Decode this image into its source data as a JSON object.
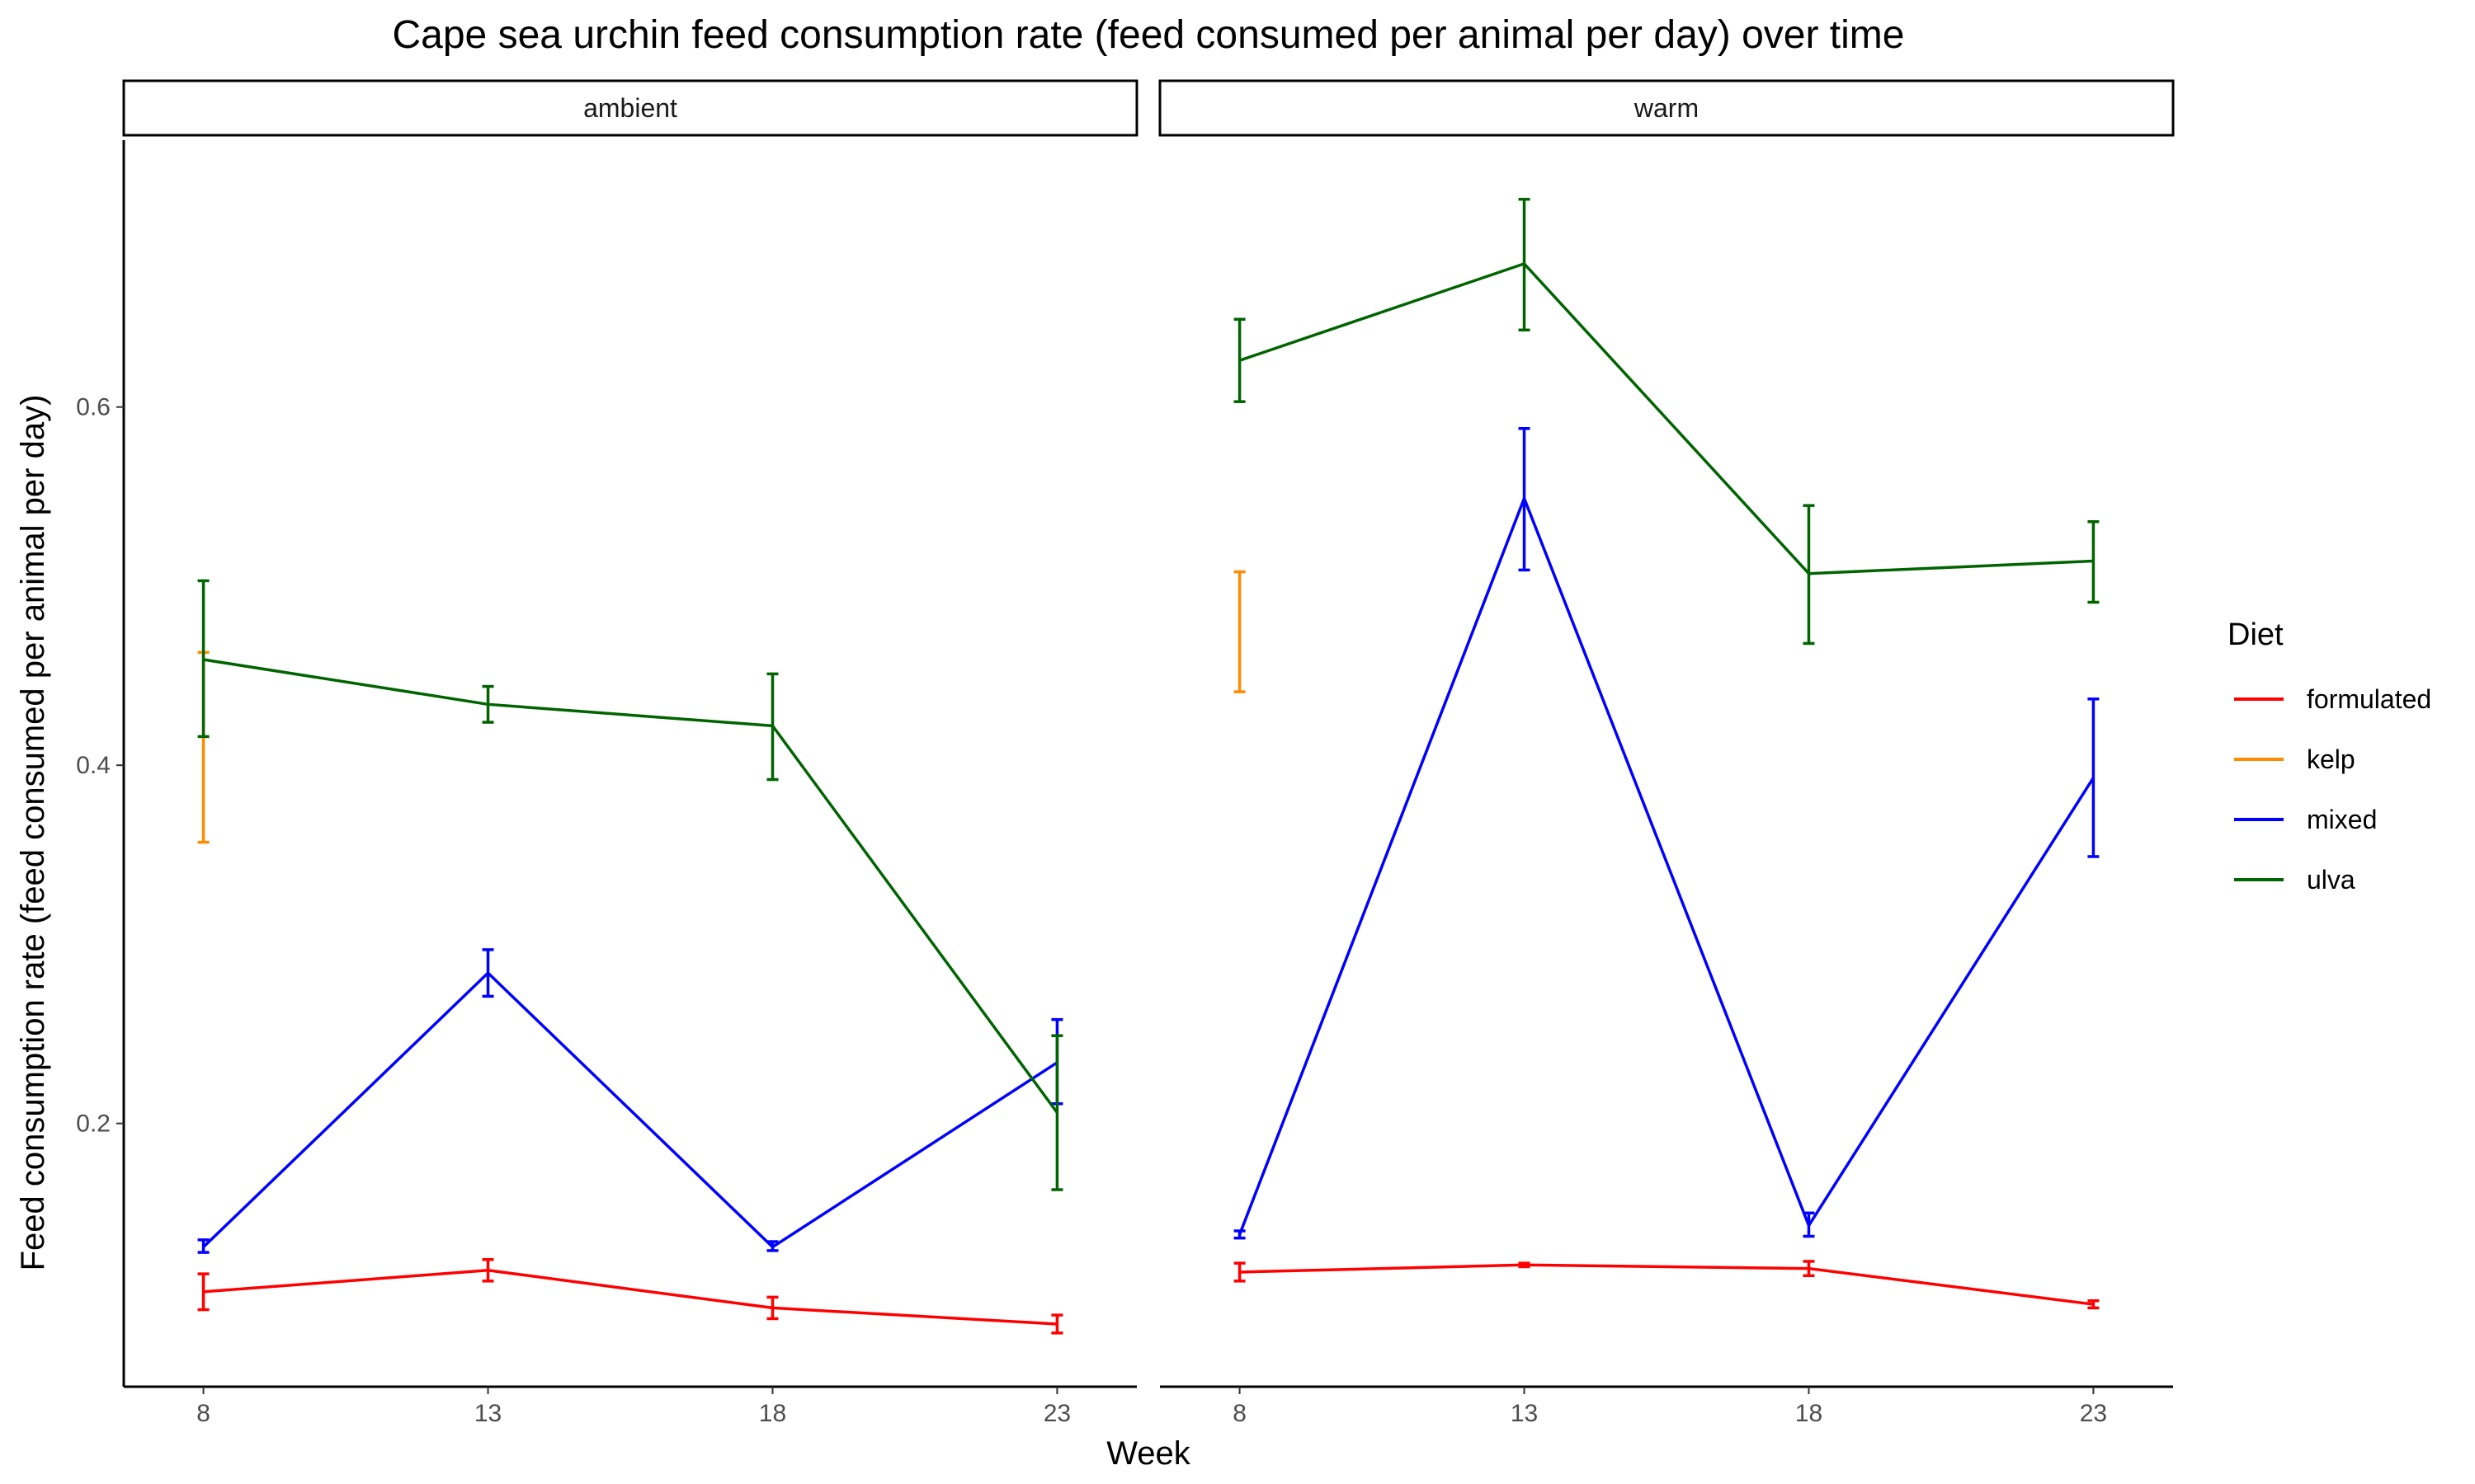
{
  "chart_data": {
    "type": "line",
    "title": "Cape sea urchin feed consumption rate (feed consumed per animal per day) over time",
    "xlabel": "Week",
    "ylabel": "Feed consumption rate (feed consumed per animal per day)",
    "x": [
      8,
      13,
      18,
      23
    ],
    "ylim": [
      0.053,
      0.749
    ],
    "yticks": [
      0.2,
      0.4,
      0.6
    ],
    "grid": false,
    "legend": {
      "title": "Diet",
      "position": "right",
      "entries": [
        {
          "name": "formulated",
          "color": "#ff0000"
        },
        {
          "name": "kelp",
          "color": "#ff8c00"
        },
        {
          "name": "mixed",
          "color": "#0000ff"
        },
        {
          "name": "ulva",
          "color": "#006400"
        }
      ]
    },
    "panels": [
      {
        "label": "ambient",
        "series": [
          {
            "name": "formulated",
            "values": [
              0.106,
              0.118,
              0.097,
              0.088
            ],
            "lower": [
              0.096,
              0.112,
              0.091,
              0.083
            ],
            "upper": [
              0.116,
              0.124,
              0.103,
              0.093
            ]
          },
          {
            "name": "kelp",
            "values": [
              null,
              null,
              null,
              null
            ],
            "lower": [
              0.357,
              null,
              null,
              null
            ],
            "upper": [
              0.463,
              null,
              null,
              null
            ]
          },
          {
            "name": "mixed",
            "values": [
              0.131,
              0.284,
              0.131,
              0.234
            ],
            "lower": [
              0.128,
              0.271,
              0.129,
              0.211
            ],
            "upper": [
              0.135,
              0.297,
              0.134,
              0.258
            ]
          },
          {
            "name": "ulva",
            "values": [
              0.459,
              0.434,
              0.422,
              0.206
            ],
            "lower": [
              0.416,
              0.424,
              0.392,
              0.163
            ],
            "upper": [
              0.503,
              0.444,
              0.451,
              0.249
            ]
          }
        ]
      },
      {
        "label": "warm",
        "series": [
          {
            "name": "formulated",
            "values": [
              0.117,
              0.121,
              0.119,
              0.099
            ],
            "lower": [
              0.112,
              0.12,
              0.115,
              0.097
            ],
            "upper": [
              0.122,
              0.122,
              0.123,
              0.101
            ]
          },
          {
            "name": "kelp",
            "values": [
              null,
              null,
              null,
              null
            ],
            "lower": [
              0.441,
              null,
              null,
              null
            ],
            "upper": [
              0.508,
              null,
              null,
              null
            ]
          },
          {
            "name": "mixed",
            "values": [
              0.138,
              0.549,
              0.143,
              0.393
            ],
            "lower": [
              0.136,
              0.509,
              0.137,
              0.349
            ],
            "upper": [
              0.14,
              0.588,
              0.15,
              0.437
            ]
          },
          {
            "name": "ulva",
            "values": [
              0.626,
              0.68,
              0.507,
              0.514
            ],
            "lower": [
              0.603,
              0.643,
              0.468,
              0.491
            ],
            "upper": [
              0.649,
              0.716,
              0.545,
              0.536
            ]
          }
        ]
      }
    ]
  }
}
